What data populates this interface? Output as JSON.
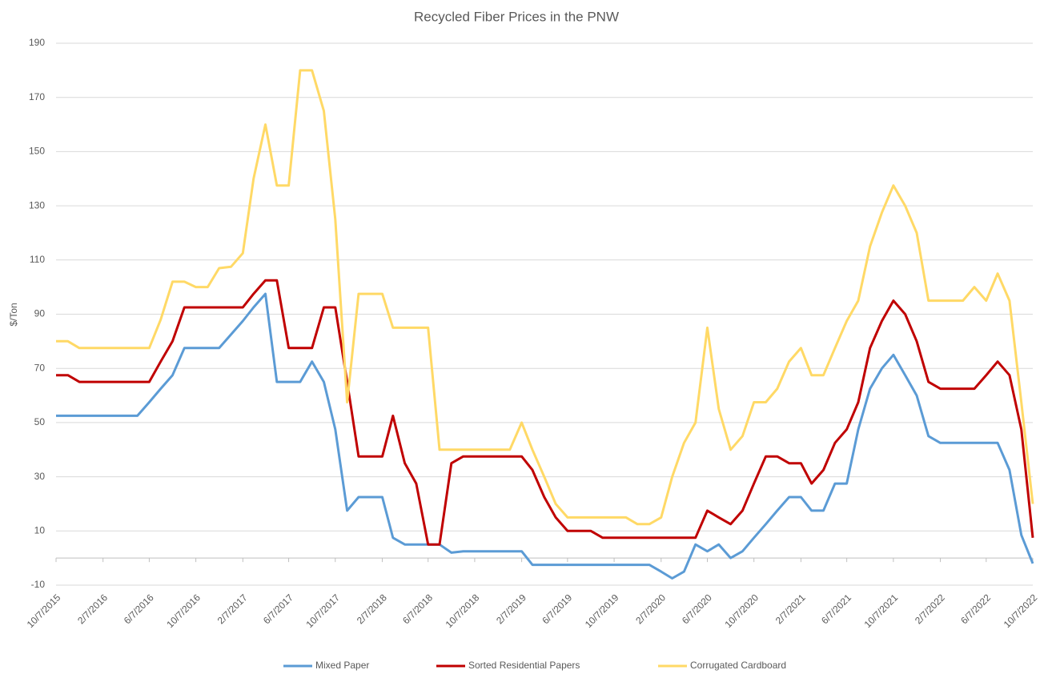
{
  "chart_data": {
    "type": "line",
    "title": "Recycled Fiber Prices in the PNW",
    "y_label": "$/Ton",
    "x": [
      "10/7/2015",
      "11/7/2015",
      "12/7/2015",
      "1/7/2016",
      "2/7/2016",
      "3/7/2016",
      "4/7/2016",
      "5/7/2016",
      "6/7/2016",
      "7/7/2016",
      "8/7/2016",
      "9/7/2016",
      "10/7/2016",
      "11/7/2016",
      "12/7/2016",
      "1/7/2017",
      "2/7/2017",
      "3/7/2017",
      "4/7/2017",
      "5/7/2017",
      "6/7/2017",
      "7/7/2017",
      "8/7/2017",
      "9/7/2017",
      "10/7/2017",
      "11/7/2017",
      "12/7/2017",
      "1/7/2018",
      "2/7/2018",
      "3/7/2018",
      "4/7/2018",
      "5/7/2018",
      "6/7/2018",
      "7/7/2018",
      "8/7/2018",
      "9/7/2018",
      "10/7/2018",
      "11/7/2018",
      "12/7/2018",
      "1/7/2019",
      "2/7/2019",
      "3/7/2019",
      "4/7/2019",
      "5/7/2019",
      "6/7/2019",
      "7/7/2019",
      "8/7/2019",
      "9/7/2019",
      "10/7/2019",
      "11/7/2019",
      "12/7/2019",
      "1/7/2020",
      "2/7/2020",
      "3/7/2020",
      "4/7/2020",
      "5/7/2020",
      "6/7/2020",
      "7/7/2020",
      "8/7/2020",
      "9/7/2020",
      "10/7/2020",
      "11/7/2020",
      "12/7/2020",
      "1/7/2021",
      "2/7/2021",
      "3/7/2021",
      "4/7/2021",
      "5/7/2021",
      "6/7/2021",
      "7/7/2021",
      "8/7/2021",
      "9/7/2021",
      "10/7/2021",
      "11/7/2021",
      "12/7/2021",
      "1/7/2022",
      "2/7/2022",
      "3/7/2022",
      "4/7/2022",
      "5/7/2022",
      "6/7/2022",
      "7/7/2022",
      "8/7/2022",
      "9/7/2022",
      "10/7/2022"
    ],
    "series": [
      {
        "name": "Mixed Paper",
        "color": "#5b9bd5",
        "values": [
          52.5,
          52.5,
          52.5,
          52.5,
          52.5,
          52.5,
          52.5,
          52.5,
          57.5,
          62.5,
          67.5,
          77.5,
          77.5,
          77.5,
          77.5,
          82.5,
          87.5,
          92.5,
          97.5,
          65,
          65,
          65,
          72.5,
          65,
          47.5,
          17.5,
          22.5,
          22.5,
          22.5,
          7.5,
          5,
          5,
          5,
          5,
          2,
          2.5,
          2.5,
          2.5,
          2.5,
          2.5,
          2.5,
          -2.5,
          -2.5,
          -2.5,
          -2.5,
          -2.5,
          -2.5,
          -2.5,
          -2.5,
          -2.5,
          -2.5,
          -2.5,
          -5,
          -7.5,
          -5,
          5,
          2.5,
          5,
          0,
          2.5,
          7.5,
          12.5,
          17.5,
          22.5,
          22.5,
          17.5,
          17.5,
          27.5,
          27.5,
          47.5,
          62.5,
          70,
          75,
          67.5,
          60,
          45,
          42.5,
          42.5,
          42.5,
          42.5,
          42.5,
          42.5,
          32.5,
          8.5,
          -2
        ]
      },
      {
        "name": "Sorted Residential Papers",
        "color": "#c00000",
        "values": [
          67.5,
          67.5,
          65,
          65,
          65,
          65,
          65,
          65,
          65,
          72.5,
          80,
          92.5,
          92.5,
          92.5,
          92.5,
          92.5,
          92.5,
          97.5,
          102.5,
          102.5,
          77.5,
          77.5,
          77.5,
          92.5,
          92.5,
          65,
          37.5,
          37.5,
          37.5,
          52.5,
          35,
          27.5,
          5,
          5,
          35,
          37.5,
          37.5,
          37.5,
          37.5,
          37.5,
          37.5,
          32.5,
          22.5,
          15,
          10,
          10,
          10,
          7.5,
          7.5,
          7.5,
          7.5,
          7.5,
          7.5,
          7.5,
          7.5,
          7.5,
          17.5,
          15,
          12.5,
          17.5,
          27.5,
          37.5,
          37.5,
          35,
          35,
          27.5,
          32.5,
          42.5,
          47.5,
          57.5,
          77.5,
          87.5,
          95,
          90,
          80,
          65,
          62.5,
          62.5,
          62.5,
          62.5,
          67.5,
          72.5,
          67.5,
          47.5,
          7.5
        ]
      },
      {
        "name": "Corrugated Cardboard",
        "color": "#ffd966",
        "values": [
          80,
          80,
          77.5,
          77.5,
          77.5,
          77.5,
          77.5,
          77.5,
          77.5,
          88,
          102,
          102,
          100,
          100,
          107,
          107.5,
          112.5,
          140,
          160,
          137.5,
          137.5,
          180,
          180,
          165,
          125,
          57.5,
          97.5,
          97.5,
          97.5,
          85,
          85,
          85,
          85,
          40,
          40,
          40,
          40,
          40,
          40,
          40,
          50,
          40,
          30,
          20,
          15,
          15,
          15,
          15,
          15,
          15,
          12.5,
          12.5,
          15,
          30,
          42.5,
          50,
          85,
          55,
          40,
          45,
          57.5,
          57.5,
          62.5,
          72.5,
          77.5,
          67.5,
          67.5,
          77.5,
          87.5,
          95,
          115,
          127.5,
          137.5,
          130,
          120,
          95,
          95,
          95,
          95,
          100,
          95,
          105,
          95,
          57.5,
          20
        ]
      }
    ],
    "xlim": [
      "10/7/2015",
      "10/7/2022"
    ],
    "xticks": [
      "10/7/2015",
      "2/7/2016",
      "6/7/2016",
      "10/7/2016",
      "2/7/2017",
      "6/7/2017",
      "10/7/2017",
      "2/7/2018",
      "6/7/2018",
      "10/7/2018",
      "2/7/2019",
      "6/7/2019",
      "10/7/2019",
      "2/7/2020",
      "6/7/2020",
      "10/7/2020",
      "2/7/2021",
      "6/7/2021",
      "10/7/2021",
      "2/7/2022",
      "6/7/2022",
      "10/7/2022"
    ],
    "ylim": [
      -10,
      190
    ],
    "yticks": [
      -10,
      10,
      30,
      50,
      70,
      90,
      110,
      130,
      150,
      170,
      190
    ],
    "grid": true,
    "legend": "bottom"
  }
}
